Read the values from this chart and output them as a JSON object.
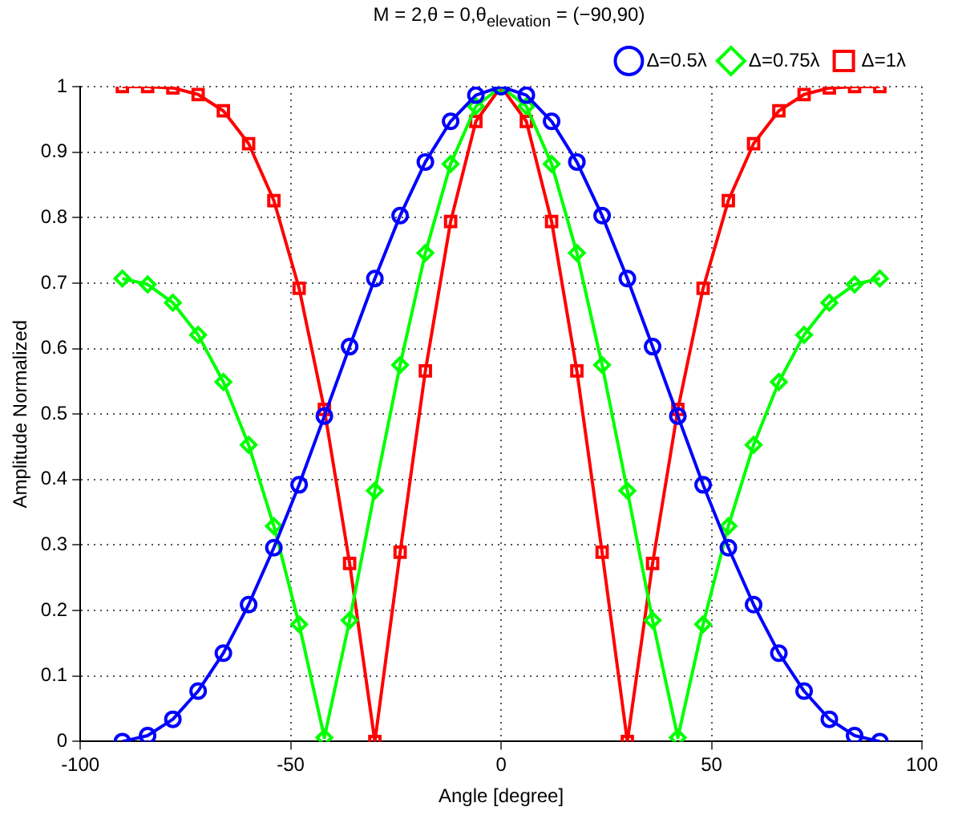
{
  "chart_data": {
    "type": "line",
    "title": "M = 2,θ = 0,θ$_{elevation}$ = (−90,90)",
    "xlabel": "Angle [degree]",
    "ylabel": "Amplitude Normalized",
    "x": [
      -90,
      -84,
      -78,
      -72,
      -66,
      -60,
      -54,
      -48,
      -42,
      -36,
      -30,
      -24,
      -18,
      -12,
      -6,
      0,
      6,
      12,
      18,
      24,
      30,
      36,
      42,
      48,
      54,
      60,
      66,
      72,
      78,
      84,
      90
    ],
    "series": [
      {
        "name": "Δ=0.5λ",
        "color": "#0000ff",
        "marker": "circle",
        "values": [
          0,
          0.009,
          0.034,
          0.077,
          0.135,
          0.209,
          0.296,
          0.392,
          0.497,
          0.603,
          0.707,
          0.803,
          0.885,
          0.947,
          0.987,
          1,
          0.987,
          0.947,
          0.885,
          0.803,
          0.707,
          0.603,
          0.497,
          0.392,
          0.296,
          0.209,
          0.135,
          0.077,
          0.034,
          0.009,
          0
        ]
      },
      {
        "name": "Δ=0.75λ",
        "color": "#00ff00",
        "marker": "diamond",
        "values": [
          0.707,
          0.698,
          0.67,
          0.621,
          0.549,
          0.453,
          0.329,
          0.179,
          0.006,
          0.185,
          0.383,
          0.575,
          0.746,
          0.882,
          0.97,
          1,
          0.97,
          0.882,
          0.746,
          0.575,
          0.383,
          0.185,
          0.006,
          0.179,
          0.329,
          0.453,
          0.549,
          0.621,
          0.67,
          0.698,
          0.707
        ]
      },
      {
        "name": "Δ=1λ",
        "color": "#ff0000",
        "marker": "square",
        "values": [
          1,
          1,
          0.998,
          0.988,
          0.963,
          0.913,
          0.826,
          0.692,
          0.507,
          0.272,
          0,
          0.289,
          0.566,
          0.794,
          0.947,
          1,
          0.947,
          0.794,
          0.566,
          0.289,
          0,
          0.272,
          0.507,
          0.692,
          0.826,
          0.913,
          0.963,
          0.988,
          0.998,
          1,
          1
        ]
      }
    ],
    "xlim": [
      -100,
      100
    ],
    "xticks": [
      -100,
      -50,
      0,
      50,
      100
    ],
    "ylim": [
      0,
      1
    ],
    "yticks": [
      0,
      0.1,
      0.2,
      0.3,
      0.4,
      0.5,
      0.6,
      0.7,
      0.8,
      0.9,
      1
    ],
    "grid": true,
    "legend": "top right",
    "line_style": "solid"
  }
}
